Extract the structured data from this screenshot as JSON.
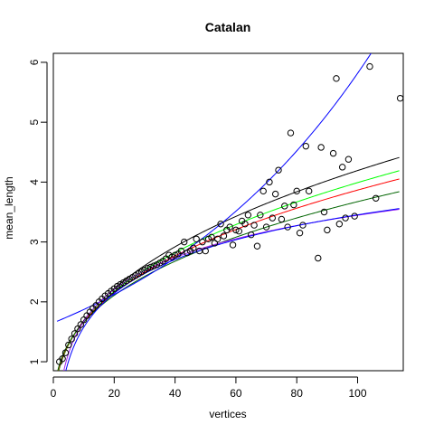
{
  "chart_data": {
    "type": "scatter",
    "title": "Catalan",
    "xlabel": "vertices",
    "ylabel": "mean_length",
    "xlim": [
      0,
      115
    ],
    "ylim": [
      0.85,
      6.15
    ],
    "x_ticks": [
      0,
      20,
      40,
      60,
      80,
      100
    ],
    "y_ticks": [
      1,
      2,
      3,
      4,
      5,
      6
    ],
    "grid": false,
    "legend": "none",
    "points": [
      [
        2,
        1.0
      ],
      [
        3,
        1.05
      ],
      [
        4,
        1.15
      ],
      [
        5,
        1.28
      ],
      [
        6,
        1.38
      ],
      [
        7,
        1.47
      ],
      [
        8,
        1.55
      ],
      [
        9,
        1.62
      ],
      [
        10,
        1.7
      ],
      [
        11,
        1.77
      ],
      [
        12,
        1.83
      ],
      [
        13,
        1.89
      ],
      [
        14,
        1.94
      ],
      [
        15,
        2.0
      ],
      [
        16,
        2.05
      ],
      [
        17,
        2.1
      ],
      [
        18,
        2.14
      ],
      [
        19,
        2.18
      ],
      [
        20,
        2.22
      ],
      [
        21,
        2.26
      ],
      [
        22,
        2.29
      ],
      [
        23,
        2.32
      ],
      [
        24,
        2.35
      ],
      [
        25,
        2.38
      ],
      [
        26,
        2.41
      ],
      [
        27,
        2.44
      ],
      [
        28,
        2.47
      ],
      [
        29,
        2.5
      ],
      [
        30,
        2.53
      ],
      [
        31,
        2.56
      ],
      [
        32,
        2.58
      ],
      [
        33,
        2.6
      ],
      [
        34,
        2.62
      ],
      [
        35,
        2.65
      ],
      [
        36,
        2.68
      ],
      [
        37,
        2.72
      ],
      [
        38,
        2.78
      ],
      [
        39,
        2.75
      ],
      [
        40,
        2.78
      ],
      [
        41,
        2.8
      ],
      [
        42,
        2.85
      ],
      [
        43,
        3.0
      ],
      [
        44,
        2.82
      ],
      [
        45,
        2.85
      ],
      [
        46,
        2.9
      ],
      [
        47,
        3.05
      ],
      [
        48,
        2.85
      ],
      [
        49,
        3.0
      ],
      [
        50,
        2.85
      ],
      [
        51,
        3.05
      ],
      [
        52,
        3.08
      ],
      [
        53,
        2.98
      ],
      [
        54,
        3.05
      ],
      [
        55,
        3.3
      ],
      [
        56,
        3.1
      ],
      [
        57,
        3.2
      ],
      [
        58,
        3.25
      ],
      [
        59,
        2.95
      ],
      [
        60,
        3.2
      ],
      [
        61,
        3.18
      ],
      [
        62,
        3.35
      ],
      [
        63,
        3.3
      ],
      [
        64,
        3.45
      ],
      [
        65,
        3.12
      ],
      [
        66,
        3.28
      ],
      [
        67,
        2.93
      ],
      [
        68,
        3.45
      ],
      [
        69,
        3.85
      ],
      [
        70,
        3.25
      ],
      [
        71,
        4.0
      ],
      [
        72,
        3.4
      ],
      [
        73,
        3.8
      ],
      [
        74,
        4.2
      ],
      [
        75,
        3.38
      ],
      [
        76,
        3.6
      ],
      [
        77,
        3.25
      ],
      [
        78,
        4.82
      ],
      [
        79,
        3.62
      ],
      [
        80,
        3.85
      ],
      [
        81,
        3.15
      ],
      [
        82,
        3.28
      ],
      [
        83,
        4.6
      ],
      [
        84,
        3.85
      ],
      [
        87,
        2.73
      ],
      [
        88,
        4.58
      ],
      [
        89,
        3.5
      ],
      [
        90,
        3.2
      ],
      [
        92,
        4.48
      ],
      [
        93,
        5.73
      ],
      [
        94,
        3.3
      ],
      [
        95,
        4.25
      ],
      [
        96,
        3.4
      ],
      [
        97,
        4.38
      ],
      [
        99,
        3.43
      ],
      [
        104,
        5.93
      ],
      [
        106,
        3.73
      ],
      [
        114,
        5.4
      ]
    ],
    "curves": [
      {
        "color": "#000000",
        "form": "power",
        "a": 0.68,
        "b": 0.395
      },
      {
        "color": "#00ff00",
        "form": "power",
        "a": 0.7,
        "b": 0.378
      },
      {
        "color": "#ff0000",
        "form": "power",
        "a": 0.72,
        "b": 0.365
      },
      {
        "color": "#006400",
        "form": "power",
        "a": 0.75,
        "b": 0.345
      },
      {
        "color": "#0000ff",
        "form": "exp",
        "a": 1.65,
        "b": 0.0126
      },
      {
        "color": "#a020f0",
        "form": "log",
        "a": -0.1,
        "b": 0.77
      },
      {
        "color": "#0000ff",
        "form": "log",
        "a": -0.3,
        "b": 0.815
      }
    ]
  }
}
